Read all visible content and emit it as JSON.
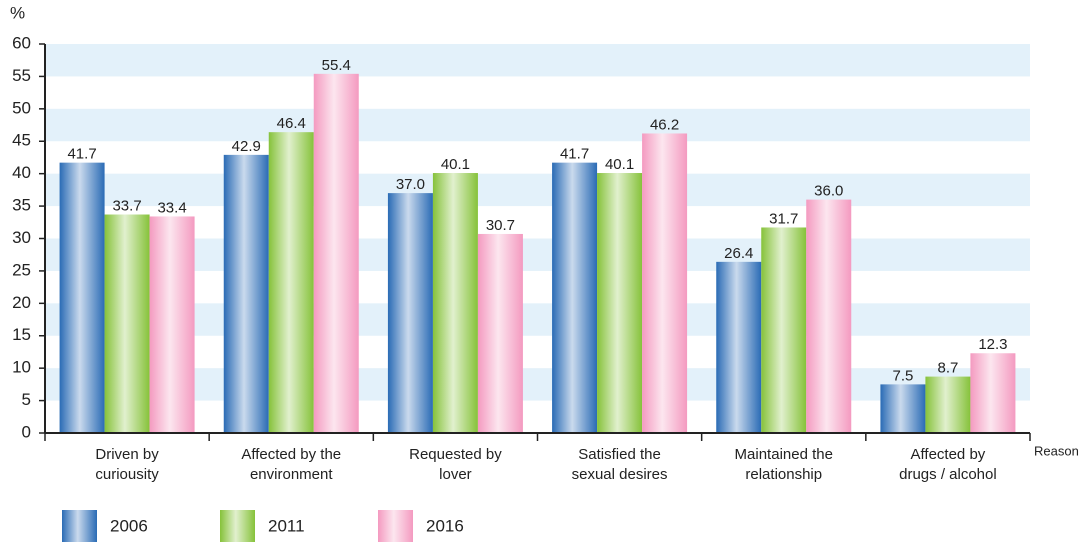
{
  "chart_data": {
    "type": "bar",
    "y_label": "%",
    "x_label": "Reason",
    "categories": [
      [
        "Driven by",
        "curiousity"
      ],
      [
        "Affected by the",
        "environment"
      ],
      [
        "Requested by",
        "lover"
      ],
      [
        "Satisfied the",
        "sexual desires"
      ],
      [
        "Maintained the",
        "relationship"
      ],
      [
        "Affected by",
        "drugs / alcohol"
      ]
    ],
    "series": [
      {
        "name": "2006",
        "color": "#2a6bb5",
        "values": [
          41.7,
          42.9,
          37.0,
          41.7,
          26.4,
          7.5
        ],
        "value_labels": [
          "41.7",
          "42.9",
          "37.0",
          "41.7",
          "26.4",
          "7.5"
        ]
      },
      {
        "name": "2011",
        "color": "#86c23a",
        "values": [
          33.7,
          46.4,
          40.1,
          40.1,
          31.7,
          8.7
        ],
        "value_labels": [
          "33.7",
          "46.4",
          "40.1",
          "40.1",
          "31.7",
          "8.7"
        ]
      },
      {
        "name": "2016",
        "color": "#f49ac0",
        "values": [
          33.4,
          55.4,
          30.7,
          46.2,
          36.0,
          12.3
        ],
        "value_labels": [
          "33.4",
          "55.4",
          "30.7",
          "46.2",
          "36.0",
          "12.3"
        ]
      }
    ],
    "ylim": [
      0,
      60
    ],
    "yticks": [
      0,
      5,
      10,
      15,
      20,
      25,
      30,
      35,
      40,
      45,
      50,
      55,
      60
    ],
    "grid": "bands",
    "band_color": "#e3f1fa",
    "legend": "bottom-left"
  }
}
